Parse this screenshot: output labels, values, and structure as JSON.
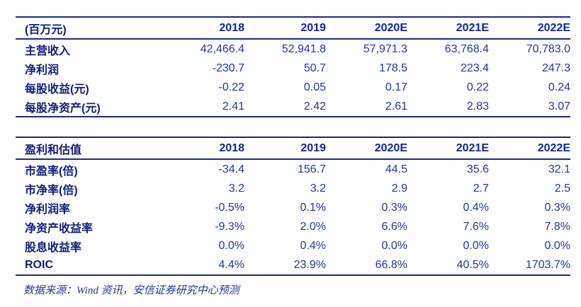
{
  "colors": {
    "line_navy": "#1b2a7b",
    "label_navy": "#131c7d",
    "header_year_blue": "#16249a",
    "number_blue": "#2236a5",
    "background": "#ffffff"
  },
  "table1": {
    "title": "(百万元)",
    "columns": [
      "2018",
      "2019",
      "2020E",
      "2021E",
      "2022E"
    ],
    "rows": [
      {
        "label": "主营收入",
        "values": [
          "42,466.4",
          "52,941.8",
          "57,971.3",
          "63,768.4",
          "70,783.0"
        ]
      },
      {
        "label": "净利润",
        "values": [
          "-230.7",
          "50.7",
          "178.5",
          "223.4",
          "247.3"
        ]
      },
      {
        "label": "每股收益(元)",
        "values": [
          "-0.22",
          "0.05",
          "0.17",
          "0.22",
          "0.24"
        ]
      },
      {
        "label": "每股净资产(元)",
        "values": [
          "2.41",
          "2.42",
          "2.61",
          "2.83",
          "3.07"
        ]
      }
    ]
  },
  "table2": {
    "title": "盈利和估值",
    "columns": [
      "2018",
      "2019",
      "2020E",
      "2021E",
      "2022E"
    ],
    "rows": [
      {
        "label": "市盈率(倍)",
        "values": [
          "-34.4",
          "156.7",
          "44.5",
          "35.6",
          "32.1"
        ]
      },
      {
        "label": "市净率(倍)",
        "values": [
          "3.2",
          "3.2",
          "2.9",
          "2.7",
          "2.5"
        ]
      },
      {
        "label": "净利润率",
        "values": [
          "-0.5%",
          "0.1%",
          "0.3%",
          "0.4%",
          "0.3%"
        ]
      },
      {
        "label": "净资产收益率",
        "values": [
          "-9.3%",
          "2.0%",
          "6.6%",
          "7.6%",
          "7.8%"
        ]
      },
      {
        "label": "股息收益率",
        "values": [
          "0.0%",
          "0.4%",
          "0.0%",
          "0.0%",
          "0.0%"
        ]
      },
      {
        "label": "ROIC",
        "values": [
          "4.4%",
          "23.9%",
          "66.8%",
          "40.5%",
          "1703.7%"
        ]
      }
    ]
  },
  "footer": {
    "source_note": "数据来源：Wind 资讯，安信证券研究中心预测"
  }
}
